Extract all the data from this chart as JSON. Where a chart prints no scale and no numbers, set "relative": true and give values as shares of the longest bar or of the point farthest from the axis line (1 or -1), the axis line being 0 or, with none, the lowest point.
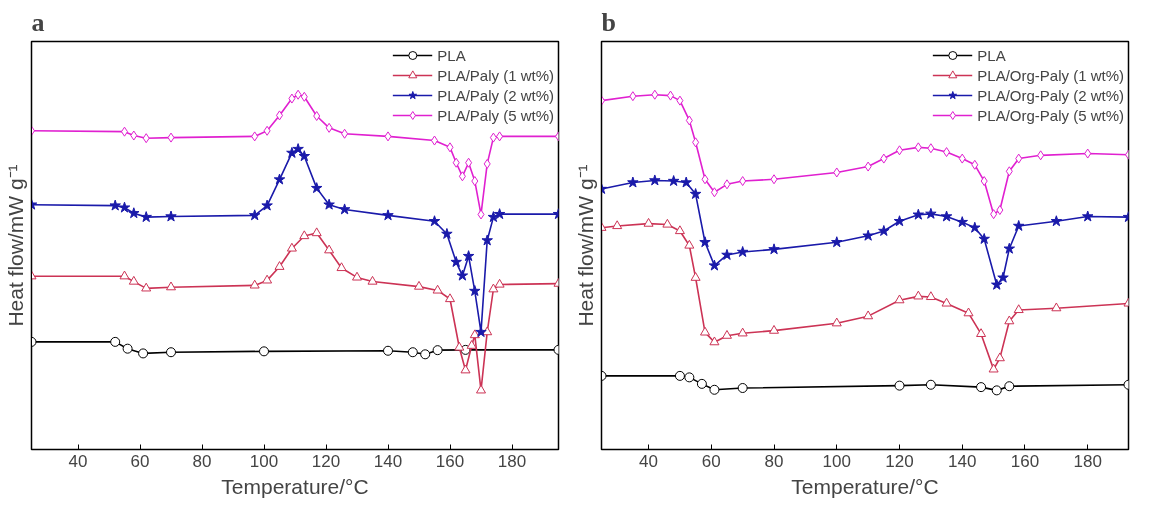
{
  "chart_data": [
    {
      "type": "line",
      "title": "a",
      "xlabel": "Temperature/°C",
      "ylabel": "Heat flow/mW g⁻¹",
      "relative": true,
      "xlim": [
        25,
        195
      ],
      "xticks": [
        40,
        60,
        80,
        100,
        120,
        140,
        160,
        180
      ],
      "grid": false,
      "legend": "top right",
      "line_style": "solid",
      "series": [
        {
          "name": "PLA",
          "color": "#000000",
          "marker": "circle",
          "x": [
            25,
            52,
            56,
            61,
            70,
            100,
            140,
            148,
            152,
            156,
            165,
            195
          ],
          "values": [
            0.164,
            0.164,
            0.141,
            0.125,
            0.129,
            0.132,
            0.134,
            0.129,
            0.122,
            0.136,
            0.137,
            0.137
          ]
        },
        {
          "name": "PLA/Paly (1 wt%)",
          "color": "#cc3355",
          "marker": "triangle",
          "x": [
            25,
            55,
            58,
            62,
            70,
            97,
            101,
            105,
            109,
            113,
            117,
            121,
            125,
            130,
            135,
            150,
            156,
            160,
            163,
            165,
            167,
            168,
            170,
            172,
            174,
            176,
            195
          ],
          "values": [
            0.386,
            0.386,
            0.368,
            0.345,
            0.349,
            0.355,
            0.372,
            0.418,
            0.48,
            0.522,
            0.532,
            0.474,
            0.414,
            0.382,
            0.368,
            0.351,
            0.338,
            0.309,
            0.145,
            0.068,
            0.151,
            0.187,
            0.0,
            0.197,
            0.342,
            0.358,
            0.361
          ]
        },
        {
          "name": "PLA/Paly (2 wt%)",
          "color": "#1a1aaa",
          "marker": "star",
          "x": [
            25,
            52,
            55,
            58,
            62,
            70,
            97,
            101,
            105,
            109,
            111,
            113,
            117,
            121,
            126,
            140,
            155,
            159,
            162,
            164,
            166,
            168,
            170,
            172,
            174,
            176,
            195
          ],
          "values": [
            0.628,
            0.625,
            0.618,
            0.599,
            0.586,
            0.588,
            0.592,
            0.625,
            0.713,
            0.803,
            0.816,
            0.792,
            0.684,
            0.628,
            0.612,
            0.592,
            0.572,
            0.529,
            0.434,
            0.388,
            0.454,
            0.336,
            0.197,
            0.507,
            0.586,
            0.596,
            0.596
          ]
        },
        {
          "name": "PLA/Paly (5 wt%)",
          "color": "#e020d0",
          "marker": "diamond",
          "x": [
            25,
            55,
            58,
            62,
            70,
            97,
            101,
            105,
            109,
            111,
            113,
            117,
            121,
            126,
            140,
            155,
            160,
            162,
            164,
            166,
            168,
            170,
            172,
            174,
            176,
            195
          ],
          "values": [
            0.878,
            0.875,
            0.862,
            0.853,
            0.855,
            0.859,
            0.878,
            0.93,
            0.987,
            1.0,
            0.993,
            0.928,
            0.888,
            0.868,
            0.859,
            0.845,
            0.822,
            0.77,
            0.724,
            0.77,
            0.708,
            0.595,
            0.766,
            0.855,
            0.859,
            0.859
          ]
        }
      ]
    },
    {
      "type": "line",
      "title": "b",
      "xlabel": "Temperature/°C",
      "ylabel": "Heat flow/mW g⁻¹",
      "relative": true,
      "xlim": [
        25,
        193
      ],
      "xticks": [
        40,
        60,
        80,
        100,
        120,
        140,
        160,
        180
      ],
      "grid": false,
      "legend": "top right",
      "line_style": "solid",
      "series": [
        {
          "name": "PLA",
          "color": "#000000",
          "marker": "circle",
          "x": [
            25,
            50,
            53,
            57,
            61,
            70,
            120,
            130,
            146,
            151,
            155,
            193
          ],
          "values": [
            0.049,
            0.049,
            0.044,
            0.022,
            0.002,
            0.008,
            0.016,
            0.019,
            0.011,
            0.0,
            0.014,
            0.019
          ]
        },
        {
          "name": "PLA/Org-Paly (1 wt%)",
          "color": "#cc3355",
          "marker": "triangle",
          "x": [
            25,
            30,
            40,
            46,
            50,
            53,
            55,
            58,
            61,
            65,
            70,
            80,
            100,
            110,
            120,
            126,
            130,
            135,
            142,
            146,
            150,
            152,
            155,
            158,
            170,
            193
          ],
          "values": [
            0.55,
            0.556,
            0.564,
            0.561,
            0.539,
            0.49,
            0.381,
            0.196,
            0.163,
            0.185,
            0.193,
            0.202,
            0.227,
            0.251,
            0.305,
            0.318,
            0.316,
            0.294,
            0.261,
            0.191,
            0.071,
            0.109,
            0.234,
            0.272,
            0.278,
            0.294
          ]
        },
        {
          "name": "PLA/Org-Paly (2 wt%)",
          "color": "#1a1aaa",
          "marker": "star",
          "x": [
            25,
            35,
            42,
            48,
            52,
            55,
            58,
            61,
            65,
            70,
            80,
            100,
            110,
            115,
            120,
            126,
            130,
            135,
            140,
            144,
            147,
            151,
            153,
            155,
            158,
            170,
            180,
            193
          ],
          "values": [
            0.681,
            0.703,
            0.71,
            0.708,
            0.703,
            0.664,
            0.501,
            0.422,
            0.458,
            0.468,
            0.477,
            0.501,
            0.523,
            0.539,
            0.572,
            0.594,
            0.597,
            0.588,
            0.569,
            0.55,
            0.512,
            0.357,
            0.381,
            0.479,
            0.556,
            0.572,
            0.588,
            0.586
          ]
        },
        {
          "name": "PLA/Org-Paly (5 wt%)",
          "color": "#e020d0",
          "marker": "diamond",
          "x": [
            25,
            35,
            42,
            47,
            50,
            53,
            55,
            58,
            61,
            65,
            70,
            80,
            100,
            110,
            115,
            120,
            126,
            130,
            135,
            140,
            144,
            147,
            150,
            152,
            155,
            158,
            165,
            180,
            193
          ],
          "values": [
            0.98,
            0.995,
            1.0,
            0.997,
            0.98,
            0.913,
            0.839,
            0.714,
            0.67,
            0.697,
            0.708,
            0.714,
            0.737,
            0.757,
            0.784,
            0.812,
            0.822,
            0.819,
            0.806,
            0.784,
            0.763,
            0.708,
            0.596,
            0.61,
            0.741,
            0.784,
            0.795,
            0.801,
            0.797
          ]
        }
      ]
    }
  ]
}
